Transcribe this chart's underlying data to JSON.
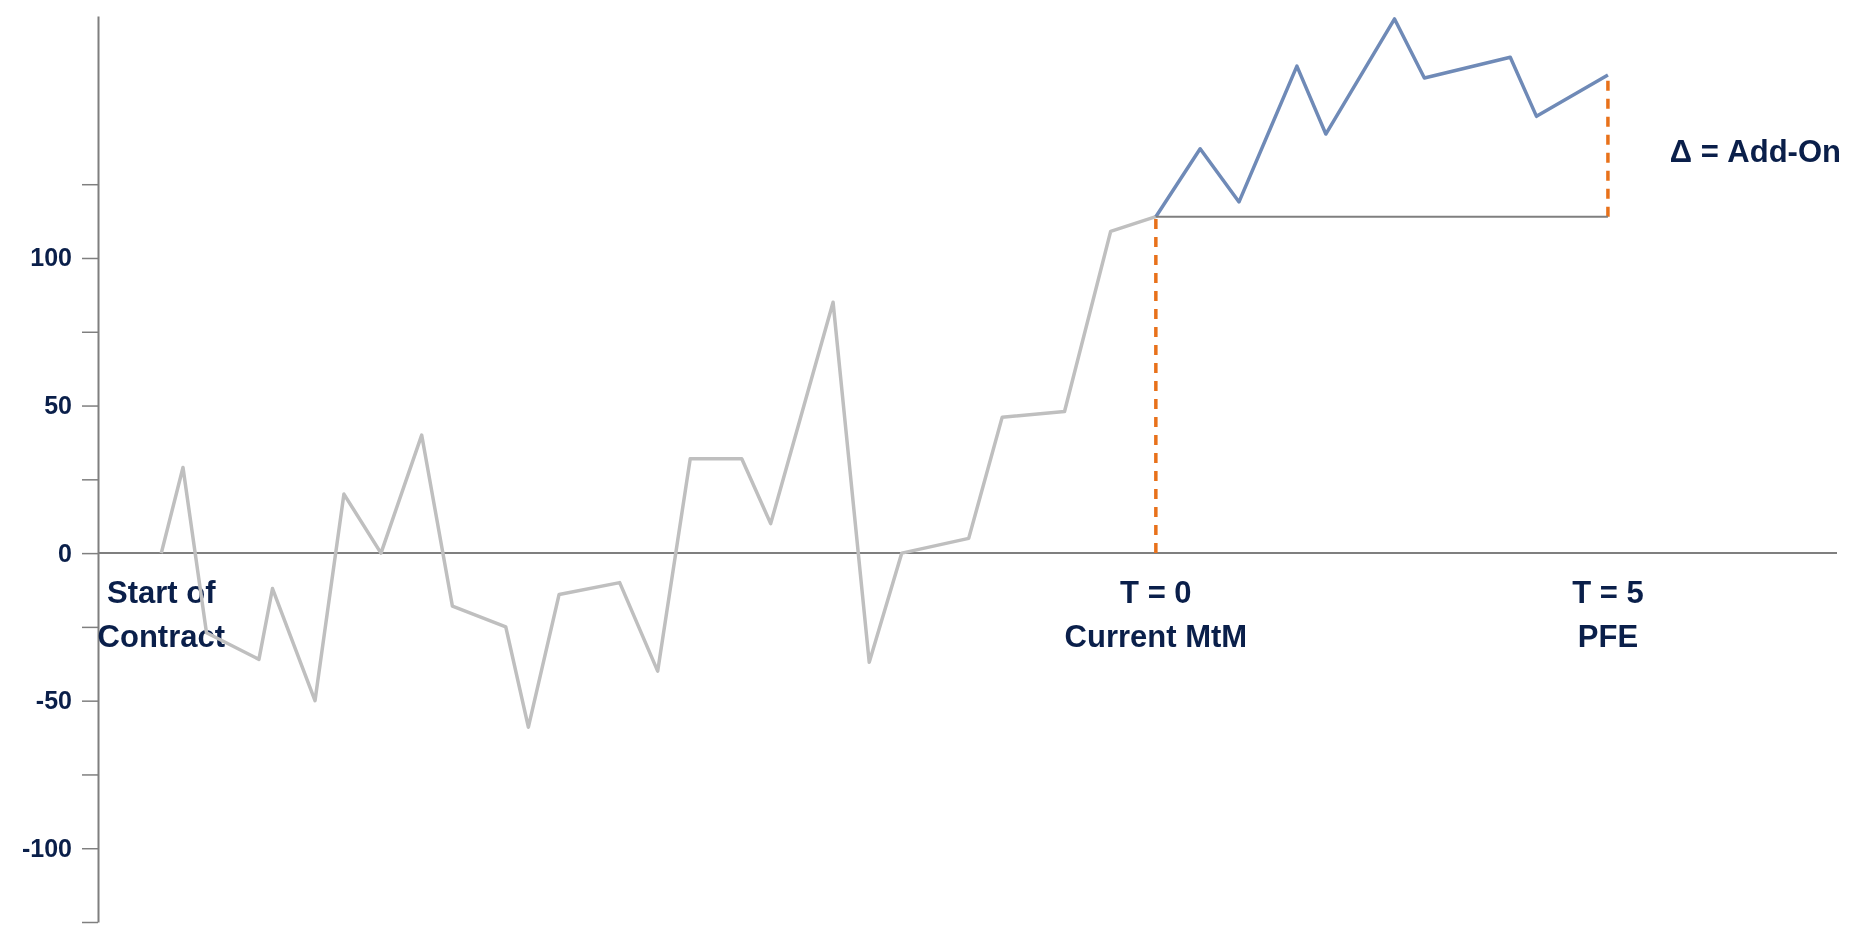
{
  "chart_data": {
    "type": "line",
    "xlim": [
      -11.7,
      7.6
    ],
    "ylim": [
      -125,
      182
    ],
    "xticks": [
      {
        "value": -11,
        "label": "Start of\nContract"
      },
      {
        "value": 0,
        "label": "T = 0\nCurrent MtM"
      },
      {
        "value": 5,
        "label": "T = 5\nPFE"
      }
    ],
    "yticks": [
      {
        "value": 125,
        "label": null
      },
      100,
      {
        "value": 75,
        "label": null
      },
      50,
      {
        "value": 25,
        "label": null
      },
      0,
      {
        "value": -25,
        "label": null
      },
      -50,
      {
        "value": -75,
        "label": null
      },
      -100,
      {
        "value": -125,
        "label": null
      }
    ],
    "grid": false,
    "marker": "none",
    "series": [
      {
        "color": "#bfbfbf",
        "line_style": "solid",
        "x": [
          -11,
          -10.76,
          -10.5,
          -9.92,
          -9.77,
          -9.3,
          -8.98,
          -8.57,
          -8.12,
          -7.78,
          -7.19,
          -6.94,
          -6.6,
          -5.93,
          -5.51,
          -5.15,
          -4.58,
          -4.26,
          -3.57,
          -3.17,
          -2.81,
          -2.07,
          -1.7,
          -1.01,
          -0.5,
          0
        ],
        "values": [
          0,
          29,
          -27,
          -36,
          -12,
          -50,
          20,
          0,
          40,
          -18,
          -25,
          -59,
          -14,
          -10,
          -40,
          32,
          32,
          10,
          85,
          -37,
          0,
          5,
          46,
          48,
          109,
          114
        ]
      },
      {
        "color": "#6f8ab7",
        "line_style": "solid",
        "x": [
          0,
          0.49,
          0.92,
          1.56,
          1.88,
          2.64,
          2.97,
          3.92,
          4.21,
          5
        ],
        "values": [
          114,
          137,
          119,
          165,
          142,
          181,
          161,
          168,
          148,
          162
        ]
      },
      {
        "color": "#e8711a",
        "line_style": "dashed",
        "x": [
          0,
          0
        ],
        "values": [
          0,
          114
        ]
      },
      {
        "color": "#e8711a",
        "line_style": "dashed",
        "x": [
          5,
          5
        ],
        "values": [
          114,
          162
        ]
      },
      {
        "color": "#7f7f7f",
        "line_style": "solid",
        "x": [
          0,
          5
        ],
        "values": [
          114,
          114
        ]
      }
    ],
    "annotations": [
      "Δ = Add-On"
    ]
  }
}
